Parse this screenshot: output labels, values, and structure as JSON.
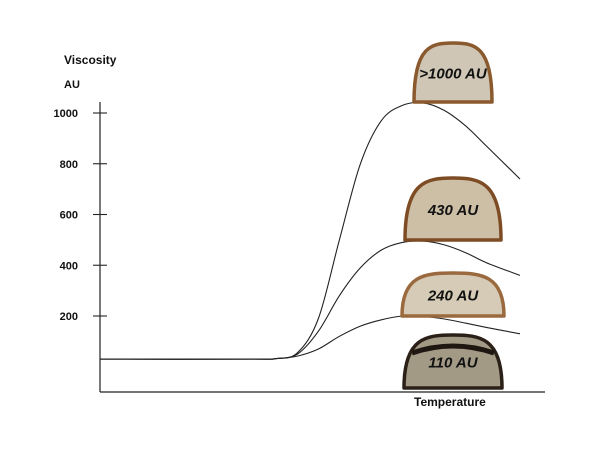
{
  "chart_data": {
    "type": "line",
    "title": "",
    "ylabel": "Viscosity",
    "yunit": "AU",
    "xlabel": "Temperature",
    "ylim": [
      0,
      1150
    ],
    "xlim": [
      0,
      100
    ],
    "yticks": [
      200,
      400,
      600,
      800,
      1000
    ],
    "grid": false,
    "series": [
      {
        "points": [
          [
            0,
            30
          ],
          [
            36,
            30
          ],
          [
            42,
            32
          ],
          [
            47,
            55
          ],
          [
            52,
            190
          ],
          [
            57,
            500
          ],
          [
            62,
            800
          ],
          [
            67,
            970
          ],
          [
            72,
            1030
          ],
          [
            77,
            1040
          ],
          [
            82,
            1010
          ],
          [
            87,
            950
          ],
          [
            92,
            870
          ],
          [
            100,
            740
          ]
        ]
      },
      {
        "points": [
          [
            0,
            30
          ],
          [
            36,
            30
          ],
          [
            42,
            32
          ],
          [
            47,
            50
          ],
          [
            52,
            140
          ],
          [
            57,
            280
          ],
          [
            62,
            390
          ],
          [
            67,
            460
          ],
          [
            72,
            490
          ],
          [
            77,
            495
          ],
          [
            82,
            480
          ],
          [
            87,
            450
          ],
          [
            92,
            410
          ],
          [
            100,
            360
          ]
        ]
      },
      {
        "points": [
          [
            0,
            30
          ],
          [
            36,
            30
          ],
          [
            42,
            32
          ],
          [
            47,
            42
          ],
          [
            52,
            70
          ],
          [
            57,
            120
          ],
          [
            62,
            160
          ],
          [
            67,
            185
          ],
          [
            72,
            200
          ],
          [
            77,
            198
          ],
          [
            82,
            188
          ],
          [
            87,
            172
          ],
          [
            92,
            155
          ],
          [
            100,
            130
          ]
        ]
      }
    ],
    "annotations": [
      {
        "label": ">1000 AU",
        "value": 1000,
        "color": "#cfc6b6",
        "crust": "#8a5a2e"
      },
      {
        "label": "430 AU",
        "value": 430,
        "color": "#cdbfa6",
        "crust": "#7e4c24"
      },
      {
        "label": "240 AU",
        "value": 240,
        "color": "#d6cbb6",
        "crust": "#9a6a3e"
      },
      {
        "label": "110 AU",
        "value": 110,
        "color": "#a39a86",
        "crust": "#2a2018"
      }
    ]
  }
}
